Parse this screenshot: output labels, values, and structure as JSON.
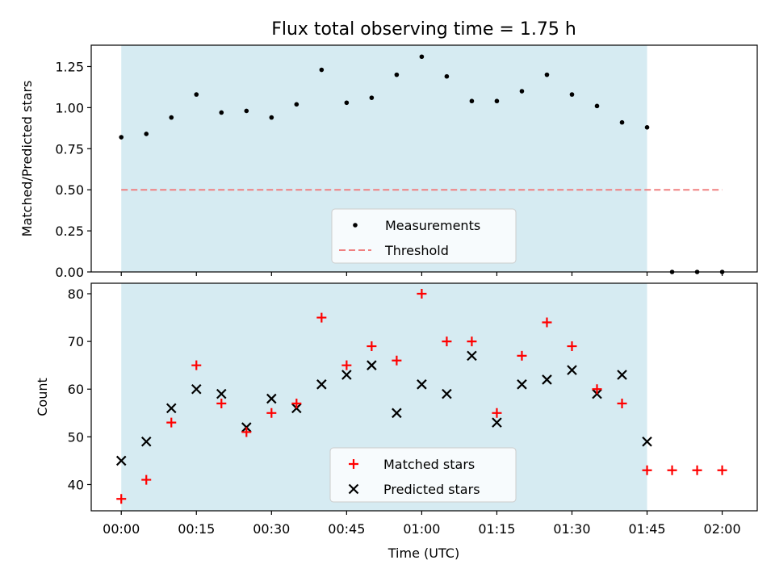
{
  "title": "Flux total observing time = 1.75 h",
  "xlabel": "Time (UTC)",
  "x_ticks": [
    "00:00",
    "00:15",
    "00:30",
    "00:45",
    "01:00",
    "01:15",
    "01:30",
    "01:45",
    "02:00"
  ],
  "colors": {
    "span": "#add8e6",
    "threshold": "#f08080",
    "matched": "#ff0000",
    "predicted": "#000000",
    "measurements": "#000000"
  },
  "chart_data": [
    {
      "type": "scatter",
      "panel": "top",
      "ylabel": "Matched/Predicted stars",
      "ylim": [
        0,
        1.38
      ],
      "xlim": [
        "23:54",
        "02:07"
      ],
      "y_ticks": [
        "0.00",
        "0.25",
        "0.50",
        "0.75",
        "1.00",
        "1.25"
      ],
      "shaded_span": [
        "00:00",
        "01:45"
      ],
      "series": [
        {
          "name": "Measurements",
          "x": [
            "00:00",
            "00:05",
            "00:10",
            "00:15",
            "00:20",
            "00:25",
            "00:30",
            "00:35",
            "00:40",
            "00:45",
            "00:50",
            "00:55",
            "01:00",
            "01:05",
            "01:10",
            "01:15",
            "01:20",
            "01:25",
            "01:30",
            "01:35",
            "01:40",
            "01:45",
            "01:50",
            "01:55",
            "02:00"
          ],
          "y": [
            0.82,
            0.84,
            0.94,
            1.08,
            0.97,
            0.98,
            0.94,
            1.02,
            1.23,
            1.03,
            1.06,
            1.2,
            1.31,
            1.19,
            1.04,
            1.04,
            1.1,
            1.2,
            1.08,
            1.01,
            0.91,
            0.88,
            0.0,
            0.0,
            0.0
          ]
        },
        {
          "name": "Threshold",
          "x": [
            "00:00",
            "02:00"
          ],
          "y": [
            0.5,
            0.5
          ]
        }
      ],
      "legend": [
        "Measurements",
        "Threshold"
      ],
      "legend_position": "lower center"
    },
    {
      "type": "scatter",
      "panel": "bottom",
      "ylabel": "Count",
      "ylim": [
        34.5,
        82.2
      ],
      "xlim": [
        "23:54",
        "02:07"
      ],
      "y_ticks": [
        "40",
        "50",
        "60",
        "70",
        "80"
      ],
      "shaded_span": [
        "00:00",
        "01:45"
      ],
      "series": [
        {
          "name": "Matched stars",
          "x": [
            "00:00",
            "00:05",
            "00:10",
            "00:15",
            "00:20",
            "00:25",
            "00:30",
            "00:35",
            "00:40",
            "00:45",
            "00:50",
            "00:55",
            "01:00",
            "01:05",
            "01:10",
            "01:15",
            "01:20",
            "01:25",
            "01:30",
            "01:35",
            "01:40",
            "01:45",
            "01:50",
            "01:55",
            "02:00"
          ],
          "y": [
            37,
            41,
            53,
            65,
            57,
            51,
            55,
            57,
            75,
            65,
            69,
            66,
            80,
            70,
            70,
            55,
            67,
            74,
            69,
            60,
            57,
            43,
            43,
            43,
            43
          ]
        },
        {
          "name": "Predicted stars",
          "x": [
            "00:00",
            "00:05",
            "00:10",
            "00:15",
            "00:20",
            "00:25",
            "00:30",
            "00:35",
            "00:40",
            "00:45",
            "00:50",
            "00:55",
            "01:00",
            "01:05",
            "01:10",
            "01:15",
            "01:20",
            "01:25",
            "01:30",
            "01:35",
            "01:40",
            "01:45"
          ],
          "y": [
            45,
            49,
            56,
            60,
            59,
            52,
            58,
            56,
            61,
            63,
            65,
            55,
            61,
            59,
            67,
            53,
            61,
            62,
            64,
            59,
            63,
            49
          ]
        }
      ],
      "legend": [
        "Matched stars",
        "Predicted stars"
      ],
      "legend_position": "lower center"
    }
  ]
}
